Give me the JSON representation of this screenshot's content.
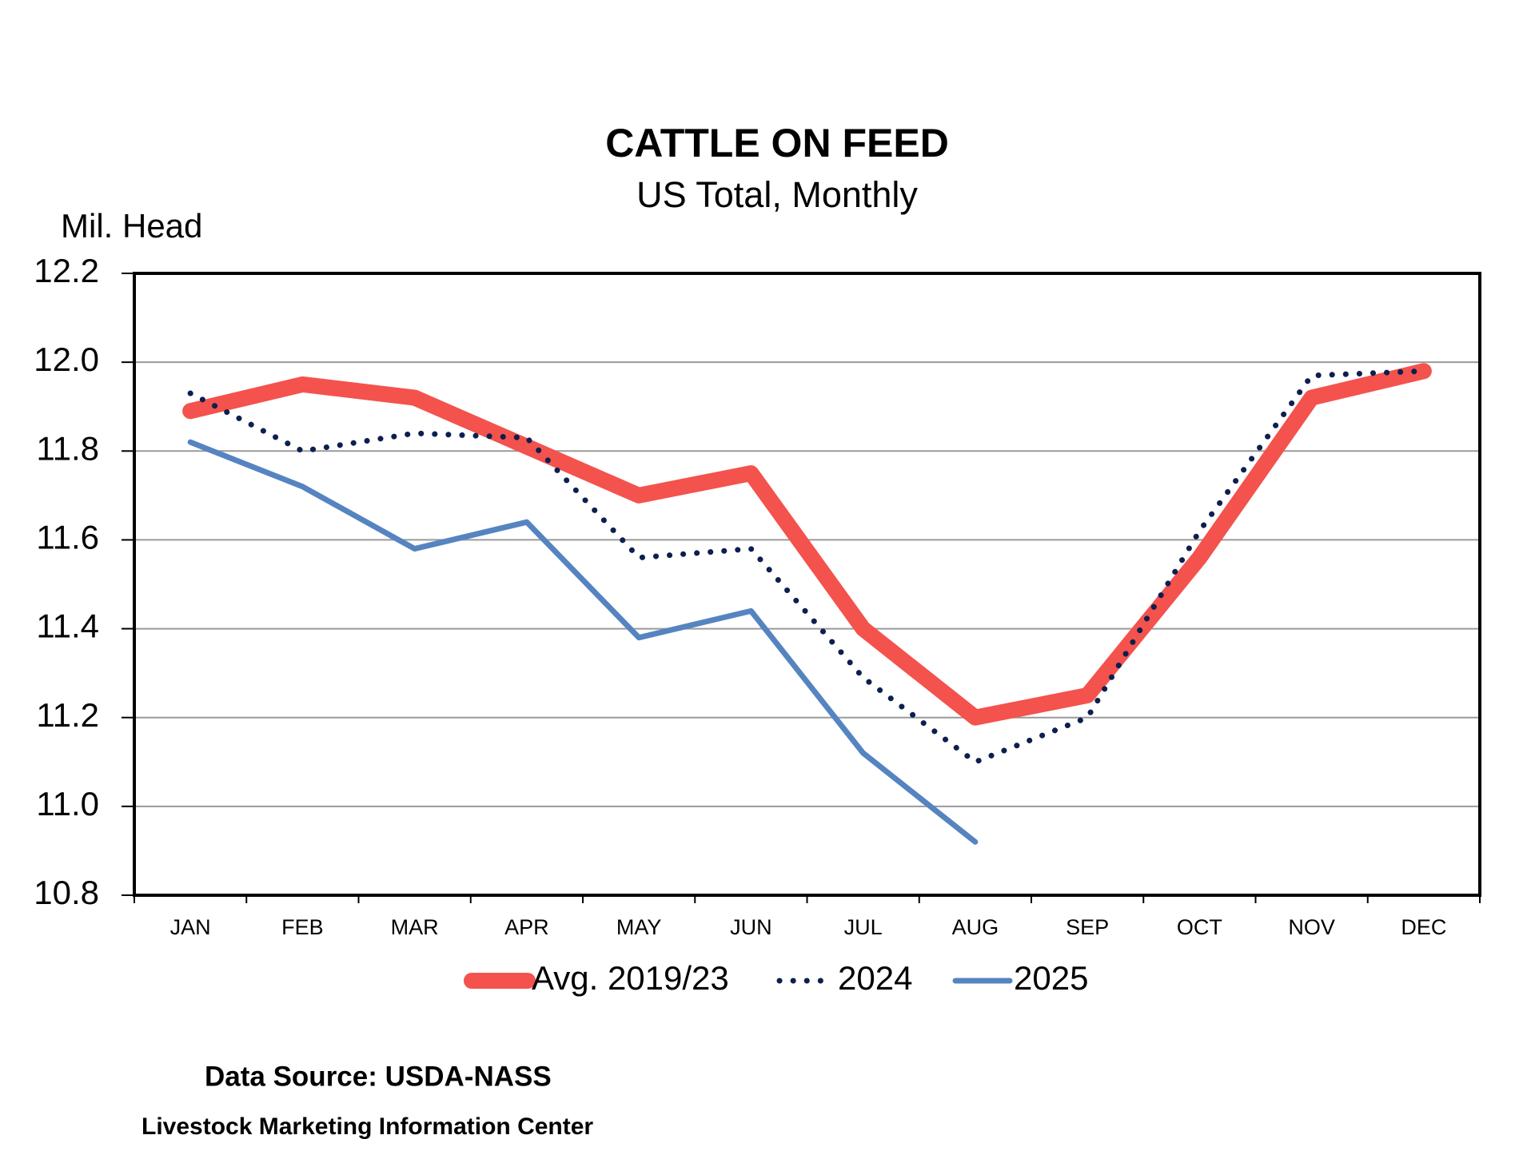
{
  "chart_data": {
    "type": "line",
    "title": "CATTLE ON FEED",
    "subtitle": "US Total, Monthly",
    "y_label": "Mil. Head",
    "categories": [
      "JAN",
      "FEB",
      "MAR",
      "APR",
      "MAY",
      "JUN",
      "JUL",
      "AUG",
      "SEP",
      "OCT",
      "NOV",
      "DEC"
    ],
    "series": [
      {
        "name": "Avg. 2019/23",
        "color": "#f4524d",
        "style": "solid",
        "width": 20,
        "values": [
          11.89,
          11.95,
          11.92,
          11.81,
          11.7,
          11.75,
          11.4,
          11.2,
          11.25,
          11.56,
          11.92,
          11.98
        ]
      },
      {
        "name": "2024",
        "color": "#0c1f4f",
        "style": "dotted",
        "width": 7,
        "values": [
          11.93,
          11.8,
          11.84,
          11.83,
          11.56,
          11.58,
          11.29,
          11.1,
          11.2,
          11.62,
          11.97,
          11.98
        ]
      },
      {
        "name": "2025",
        "color": "#5584c0",
        "style": "solid",
        "width": 7,
        "values": [
          11.82,
          11.72,
          11.58,
          11.64,
          11.38,
          11.44,
          11.12,
          10.92,
          null,
          null,
          null,
          null
        ]
      }
    ],
    "ylim": [
      10.8,
      12.2
    ],
    "yticks": [
      {
        "value": 10.8,
        "label": "10.8"
      },
      {
        "value": 11,
        "label": "11.0"
      },
      11.2,
      11.4,
      11.6,
      11.8,
      {
        "value": 12,
        "label": "12.0"
      },
      12.2
    ],
    "grid": true,
    "legend": "bottom",
    "source": "Data Source:  USDA-NASS",
    "credit": "Livestock Marketing Information Center"
  }
}
